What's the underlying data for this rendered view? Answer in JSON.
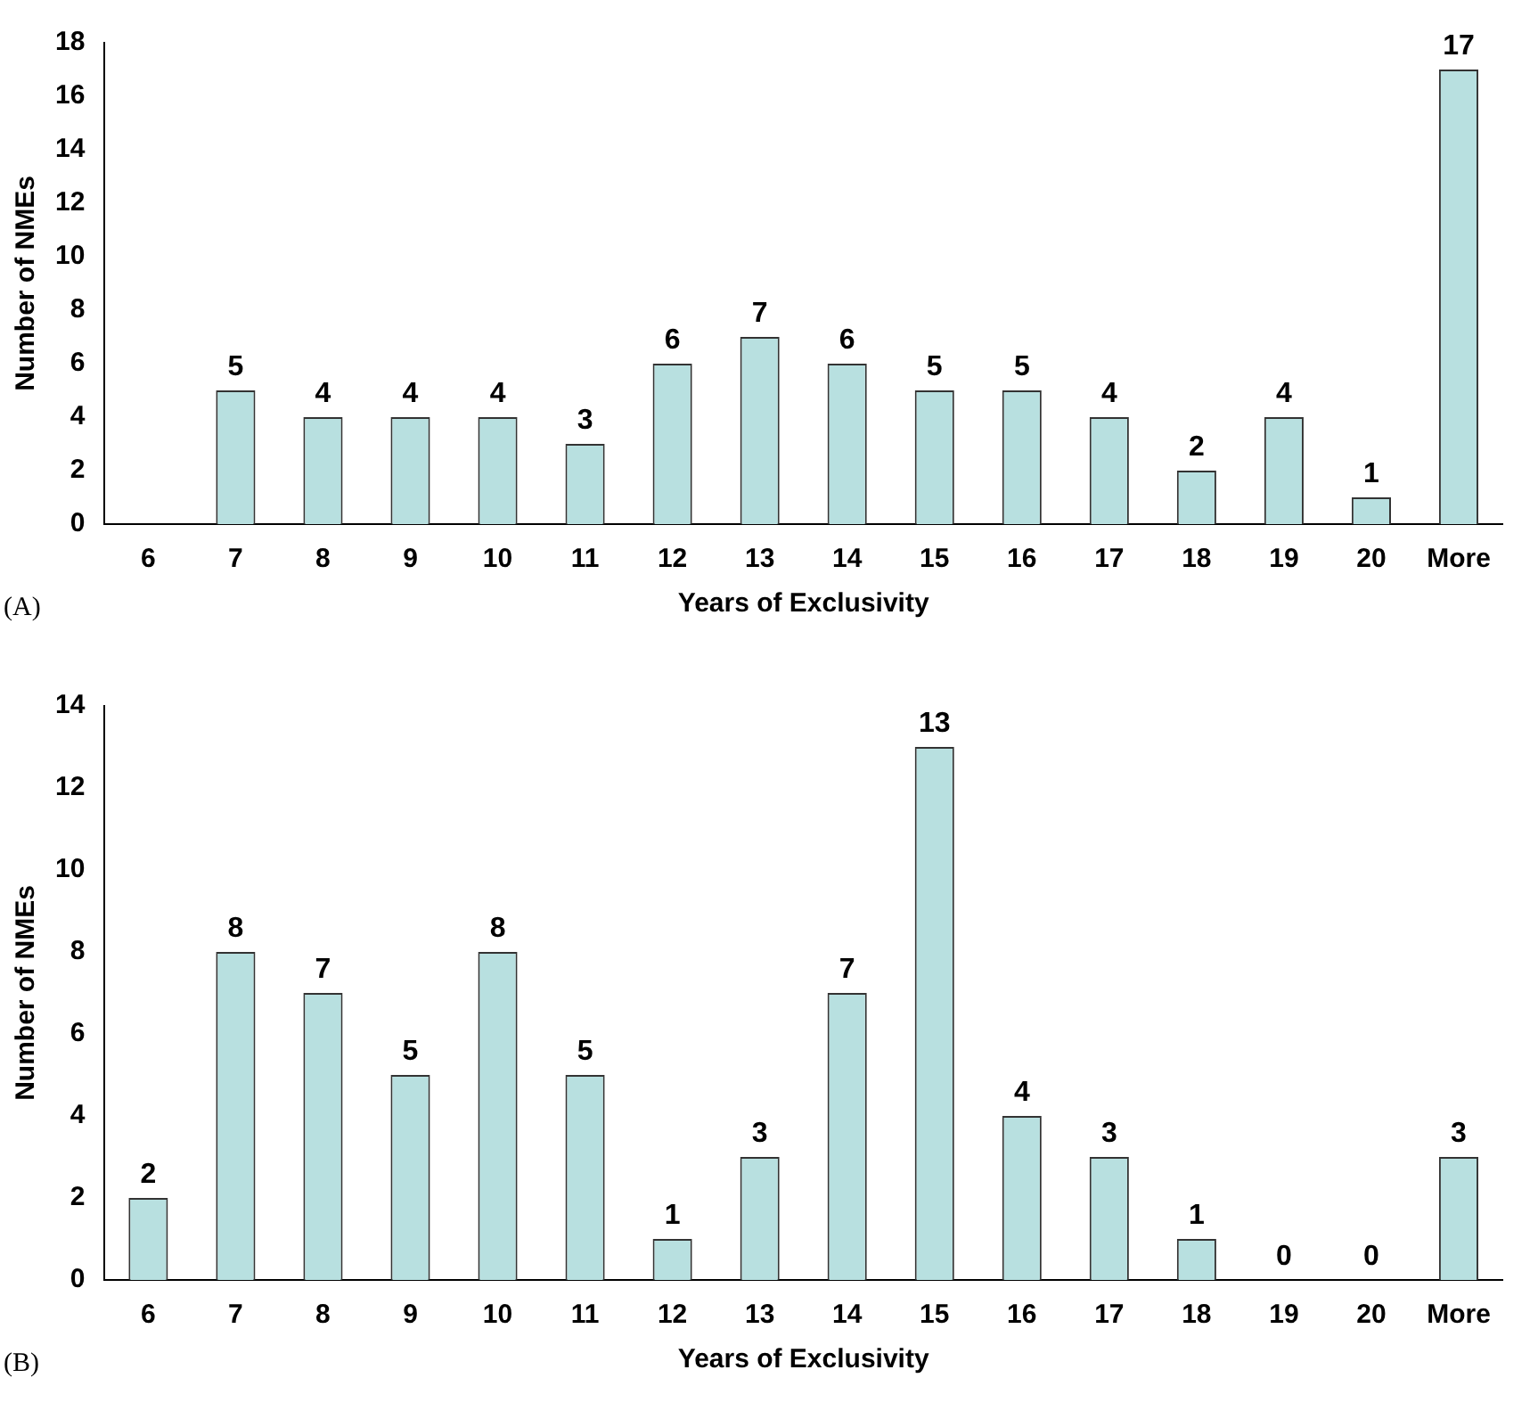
{
  "chart_data": [
    {
      "type": "bar",
      "xlabel": "Years of Exclusivity",
      "ylabel": "Number of NMEs",
      "annotations": [
        "(A)"
      ],
      "categories": [
        "6",
        "7",
        "8",
        "9",
        "10",
        "11",
        "12",
        "13",
        "14",
        "15",
        "16",
        "17",
        "18",
        "19",
        "20",
        "More"
      ],
      "values": [
        0,
        5,
        4,
        4,
        4,
        3,
        6,
        7,
        6,
        5,
        5,
        4,
        2,
        4,
        1,
        17
      ],
      "value_labels": [
        null,
        "5",
        "4",
        "4",
        "4",
        "3",
        "6",
        "7",
        "6",
        "5",
        "5",
        "4",
        "2",
        "4",
        "1",
        "17"
      ],
      "color": "#b8e0e0",
      "ylim": [
        0,
        18
      ],
      "yticks": [
        0,
        2,
        4,
        6,
        8,
        10,
        12,
        14,
        16,
        18
      ],
      "legend": false
    },
    {
      "type": "bar",
      "xlabel": "Years of Exclusivity",
      "ylabel": "Number of NMEs",
      "annotations": [
        "(B)"
      ],
      "categories": [
        "6",
        "7",
        "8",
        "9",
        "10",
        "11",
        "12",
        "13",
        "14",
        "15",
        "16",
        "17",
        "18",
        "19",
        "20",
        "More"
      ],
      "values": [
        2,
        8,
        7,
        5,
        8,
        5,
        1,
        3,
        7,
        13,
        4,
        3,
        1,
        0,
        0,
        3
      ],
      "data_labels": true,
      "color": "#b8e0e0",
      "ylim": [
        0,
        14
      ],
      "yticks": [
        0,
        2,
        4,
        6,
        8,
        10,
        12,
        14
      ],
      "legend": false
    }
  ]
}
